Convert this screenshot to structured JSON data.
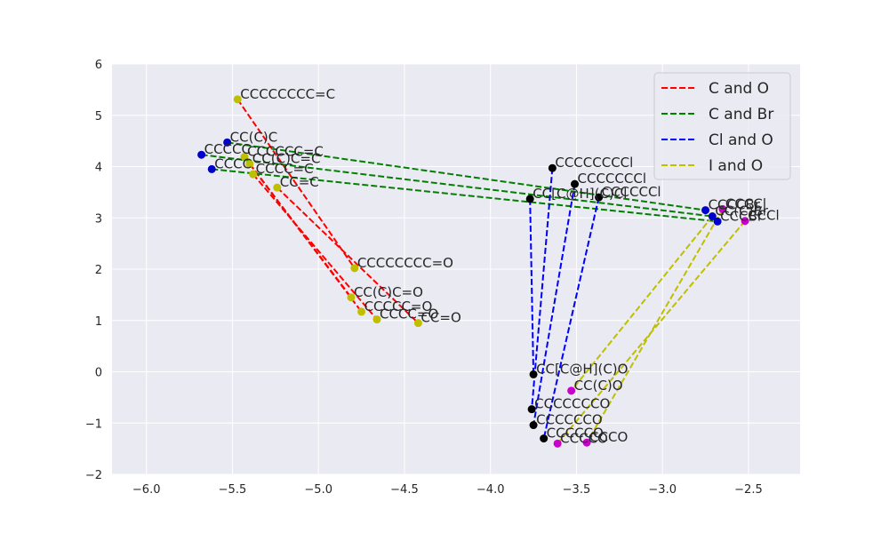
{
  "chart_data": {
    "type": "scatter",
    "title": "",
    "xlabel": "",
    "ylabel": "",
    "xlim": [
      -6.2,
      -2.2
    ],
    "ylim": [
      -2,
      6
    ],
    "xticks": [
      -6.0,
      -5.5,
      -5.0,
      -4.5,
      -4.0,
      -3.5,
      -3.0,
      -2.5
    ],
    "yticks": [
      -2,
      -1,
      0,
      1,
      2,
      3,
      4,
      5,
      6
    ],
    "xtick_labels": [
      "−6.0",
      "−5.5",
      "−5.0",
      "−4.5",
      "−4.0",
      "−3.5",
      "−3.0",
      "−2.5"
    ],
    "ytick_labels": [
      "−2",
      "−1",
      "0",
      "1",
      "2",
      "3",
      "4",
      "5",
      "6"
    ],
    "grid": true,
    "legend_position": "top-right",
    "legend": [
      {
        "label": "C and O",
        "color": "#ff0000"
      },
      {
        "label": "C and Br",
        "color": "#008000"
      },
      {
        "label": "Cl and O",
        "color": "#0000ff"
      },
      {
        "label": "I and O",
        "color": "#bfbf00"
      }
    ],
    "points": [
      {
        "label": "CCCCCCCC=C",
        "x": -5.47,
        "y": 5.31,
        "color": "#bfbf00"
      },
      {
        "label": "CCCCCC=C",
        "x": -5.43,
        "y": 4.19,
        "color": "#bfbf00"
      },
      {
        "label": "CC(C)C=C",
        "x": -5.4,
        "y": 4.05,
        "color": "#bfbf00"
      },
      {
        "label": "CCCC=C",
        "x": -5.38,
        "y": 3.85,
        "color": "#bfbf00"
      },
      {
        "label": "CC=C",
        "x": -5.24,
        "y": 3.59,
        "color": "#bfbf00"
      },
      {
        "label": "CCCCCCCC=O",
        "x": -4.79,
        "y": 2.02,
        "color": "#bfbf00"
      },
      {
        "label": "CC(C)C=O",
        "x": -4.81,
        "y": 1.45,
        "color": "#bfbf00"
      },
      {
        "label": "CCCCC=O",
        "x": -4.75,
        "y": 1.17,
        "color": "#bfbf00"
      },
      {
        "label": "CCCC=O",
        "x": -4.66,
        "y": 1.02,
        "color": "#bfbf00"
      },
      {
        "label": "CC=O",
        "x": -4.42,
        "y": 0.95,
        "color": "#bfbf00"
      },
      {
        "label": "CC(C)C",
        "x": -5.53,
        "y": 4.47,
        "color": "#0000cc"
      },
      {
        "label": "CCCCC",
        "x": -5.68,
        "y": 4.23,
        "color": "#0000cc"
      },
      {
        "label": "CCCC",
        "x": -5.62,
        "y": 3.95,
        "color": "#0000cc"
      },
      {
        "label": "CCCCCCCCl",
        "x": -3.64,
        "y": 3.97,
        "color": "#000000"
      },
      {
        "label": "CCCCCCCl",
        "x": -3.51,
        "y": 3.66,
        "color": "#000000"
      },
      {
        "label": "CCCCCCl",
        "x": -3.37,
        "y": 3.4,
        "color": "#000000"
      },
      {
        "label": "CC[C@H](C)Cl",
        "x": -3.77,
        "y": 3.37,
        "color": "#000000"
      },
      {
        "label": "CCCCBr",
        "x": -2.75,
        "y": 3.15,
        "color": "#0000cc"
      },
      {
        "label": "CC(C)Br",
        "x": -2.71,
        "y": 3.03,
        "color": "#0000cc"
      },
      {
        "label": "CCCBr",
        "x": -2.68,
        "y": 2.93,
        "color": "#0000cc"
      },
      {
        "label": "CCCCl",
        "x": -2.65,
        "y": 3.17,
        "color": "#cc00cc"
      },
      {
        "label": "CCCl",
        "x": -2.52,
        "y": 2.94,
        "color": "#cc00cc"
      },
      {
        "label": "CC[C@H](C)O",
        "x": -3.75,
        "y": -0.05,
        "color": "#000000"
      },
      {
        "label": "CC(C)O",
        "x": -3.53,
        "y": -0.37,
        "color": "#cc00cc"
      },
      {
        "label": "CCCCCCCO",
        "x": -3.76,
        "y": -0.73,
        "color": "#000000"
      },
      {
        "label": "CCCCCCO",
        "x": -3.75,
        "y": -1.04,
        "color": "#000000"
      },
      {
        "label": "CCCCCO",
        "x": -3.69,
        "y": -1.3,
        "color": "#000000"
      },
      {
        "label": "CCCCO",
        "x": -3.61,
        "y": -1.4,
        "color": "#cc00cc"
      },
      {
        "label": "CCCO",
        "x": -3.44,
        "y": -1.38,
        "color": "#cc00cc"
      }
    ],
    "series": [
      {
        "name": "C and O",
        "color": "#ff0000",
        "lines": [
          [
            [
              -5.47,
              5.31
            ],
            [
              -4.79,
              2.02
            ]
          ],
          [
            [
              -5.43,
              4.19
            ],
            [
              -4.81,
              1.45
            ]
          ],
          [
            [
              -5.4,
              4.05
            ],
            [
              -4.75,
              1.17
            ]
          ],
          [
            [
              -5.38,
              3.85
            ],
            [
              -4.66,
              1.02
            ]
          ],
          [
            [
              -5.24,
              3.59
            ],
            [
              -4.42,
              0.95
            ]
          ]
        ]
      },
      {
        "name": "C and Br",
        "color": "#008000",
        "lines": [
          [
            [
              -5.53,
              4.47
            ],
            [
              -2.75,
              3.15
            ]
          ],
          [
            [
              -5.68,
              4.23
            ],
            [
              -2.71,
              3.03
            ]
          ],
          [
            [
              -5.62,
              3.95
            ],
            [
              -2.68,
              2.93
            ]
          ]
        ]
      },
      {
        "name": "Cl and O",
        "color": "#0000ff",
        "lines": [
          [
            [
              -3.64,
              3.97
            ],
            [
              -3.76,
              -0.73
            ]
          ],
          [
            [
              -3.51,
              3.66
            ],
            [
              -3.75,
              -1.04
            ]
          ],
          [
            [
              -3.37,
              3.4
            ],
            [
              -3.69,
              -1.3
            ]
          ],
          [
            [
              -3.77,
              3.37
            ],
            [
              -3.75,
              -0.05
            ]
          ]
        ]
      },
      {
        "name": "I and O",
        "color": "#bfbf00",
        "lines": [
          [
            [
              -2.65,
              3.17
            ],
            [
              -3.44,
              -1.38
            ]
          ],
          [
            [
              -2.52,
              2.94
            ],
            [
              -3.61,
              -1.4
            ]
          ],
          [
            [
              -2.71,
              3.03
            ],
            [
              -3.53,
              -0.37
            ]
          ]
        ]
      }
    ]
  }
}
